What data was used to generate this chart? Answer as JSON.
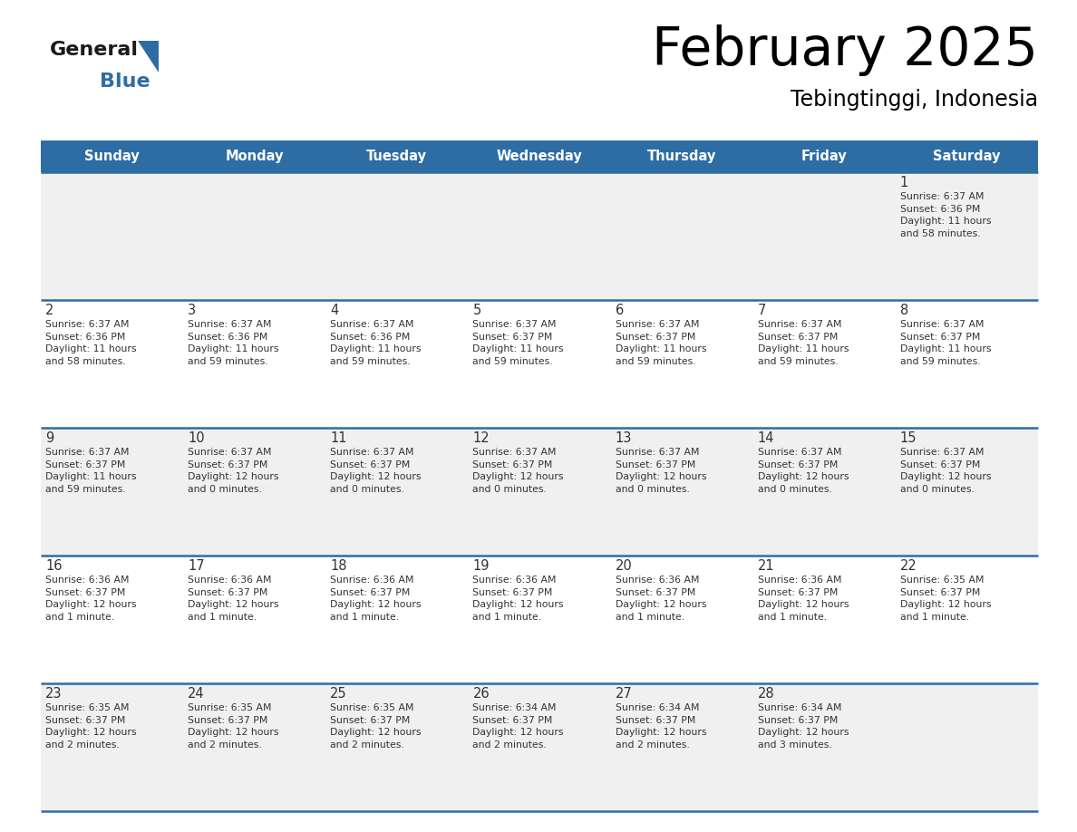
{
  "title": "February 2025",
  "subtitle": "Tebingtinggi, Indonesia",
  "header_bg_color": "#2E6DA4",
  "header_text_color": "#FFFFFF",
  "cell_bg_white": "#FFFFFF",
  "cell_bg_gray": "#F0F0F0",
  "grid_color": "#2E6DA4",
  "title_color": "#000000",
  "subtitle_color": "#000000",
  "day_number_color": "#333333",
  "cell_text_color": "#333333",
  "days_of_week": [
    "Sunday",
    "Monday",
    "Tuesday",
    "Wednesday",
    "Thursday",
    "Friday",
    "Saturday"
  ],
  "weeks": [
    [
      {
        "day": null,
        "info": null
      },
      {
        "day": null,
        "info": null
      },
      {
        "day": null,
        "info": null
      },
      {
        "day": null,
        "info": null
      },
      {
        "day": null,
        "info": null
      },
      {
        "day": null,
        "info": null
      },
      {
        "day": 1,
        "info": "Sunrise: 6:37 AM\nSunset: 6:36 PM\nDaylight: 11 hours\nand 58 minutes."
      }
    ],
    [
      {
        "day": 2,
        "info": "Sunrise: 6:37 AM\nSunset: 6:36 PM\nDaylight: 11 hours\nand 58 minutes."
      },
      {
        "day": 3,
        "info": "Sunrise: 6:37 AM\nSunset: 6:36 PM\nDaylight: 11 hours\nand 59 minutes."
      },
      {
        "day": 4,
        "info": "Sunrise: 6:37 AM\nSunset: 6:36 PM\nDaylight: 11 hours\nand 59 minutes."
      },
      {
        "day": 5,
        "info": "Sunrise: 6:37 AM\nSunset: 6:37 PM\nDaylight: 11 hours\nand 59 minutes."
      },
      {
        "day": 6,
        "info": "Sunrise: 6:37 AM\nSunset: 6:37 PM\nDaylight: 11 hours\nand 59 minutes."
      },
      {
        "day": 7,
        "info": "Sunrise: 6:37 AM\nSunset: 6:37 PM\nDaylight: 11 hours\nand 59 minutes."
      },
      {
        "day": 8,
        "info": "Sunrise: 6:37 AM\nSunset: 6:37 PM\nDaylight: 11 hours\nand 59 minutes."
      }
    ],
    [
      {
        "day": 9,
        "info": "Sunrise: 6:37 AM\nSunset: 6:37 PM\nDaylight: 11 hours\nand 59 minutes."
      },
      {
        "day": 10,
        "info": "Sunrise: 6:37 AM\nSunset: 6:37 PM\nDaylight: 12 hours\nand 0 minutes."
      },
      {
        "day": 11,
        "info": "Sunrise: 6:37 AM\nSunset: 6:37 PM\nDaylight: 12 hours\nand 0 minutes."
      },
      {
        "day": 12,
        "info": "Sunrise: 6:37 AM\nSunset: 6:37 PM\nDaylight: 12 hours\nand 0 minutes."
      },
      {
        "day": 13,
        "info": "Sunrise: 6:37 AM\nSunset: 6:37 PM\nDaylight: 12 hours\nand 0 minutes."
      },
      {
        "day": 14,
        "info": "Sunrise: 6:37 AM\nSunset: 6:37 PM\nDaylight: 12 hours\nand 0 minutes."
      },
      {
        "day": 15,
        "info": "Sunrise: 6:37 AM\nSunset: 6:37 PM\nDaylight: 12 hours\nand 0 minutes."
      }
    ],
    [
      {
        "day": 16,
        "info": "Sunrise: 6:36 AM\nSunset: 6:37 PM\nDaylight: 12 hours\nand 1 minute."
      },
      {
        "day": 17,
        "info": "Sunrise: 6:36 AM\nSunset: 6:37 PM\nDaylight: 12 hours\nand 1 minute."
      },
      {
        "day": 18,
        "info": "Sunrise: 6:36 AM\nSunset: 6:37 PM\nDaylight: 12 hours\nand 1 minute."
      },
      {
        "day": 19,
        "info": "Sunrise: 6:36 AM\nSunset: 6:37 PM\nDaylight: 12 hours\nand 1 minute."
      },
      {
        "day": 20,
        "info": "Sunrise: 6:36 AM\nSunset: 6:37 PM\nDaylight: 12 hours\nand 1 minute."
      },
      {
        "day": 21,
        "info": "Sunrise: 6:36 AM\nSunset: 6:37 PM\nDaylight: 12 hours\nand 1 minute."
      },
      {
        "day": 22,
        "info": "Sunrise: 6:35 AM\nSunset: 6:37 PM\nDaylight: 12 hours\nand 1 minute."
      }
    ],
    [
      {
        "day": 23,
        "info": "Sunrise: 6:35 AM\nSunset: 6:37 PM\nDaylight: 12 hours\nand 2 minutes."
      },
      {
        "day": 24,
        "info": "Sunrise: 6:35 AM\nSunset: 6:37 PM\nDaylight: 12 hours\nand 2 minutes."
      },
      {
        "day": 25,
        "info": "Sunrise: 6:35 AM\nSunset: 6:37 PM\nDaylight: 12 hours\nand 2 minutes."
      },
      {
        "day": 26,
        "info": "Sunrise: 6:34 AM\nSunset: 6:37 PM\nDaylight: 12 hours\nand 2 minutes."
      },
      {
        "day": 27,
        "info": "Sunrise: 6:34 AM\nSunset: 6:37 PM\nDaylight: 12 hours\nand 2 minutes."
      },
      {
        "day": 28,
        "info": "Sunrise: 6:34 AM\nSunset: 6:37 PM\nDaylight: 12 hours\nand 3 minutes."
      },
      {
        "day": null,
        "info": null
      }
    ]
  ],
  "logo_general_color": "#1a1a1a",
  "logo_blue_color": "#2E6DA4",
  "logo_triangle_color": "#2E6DA4",
  "fig_width": 11.88,
  "fig_height": 9.18,
  "fig_dpi": 100
}
